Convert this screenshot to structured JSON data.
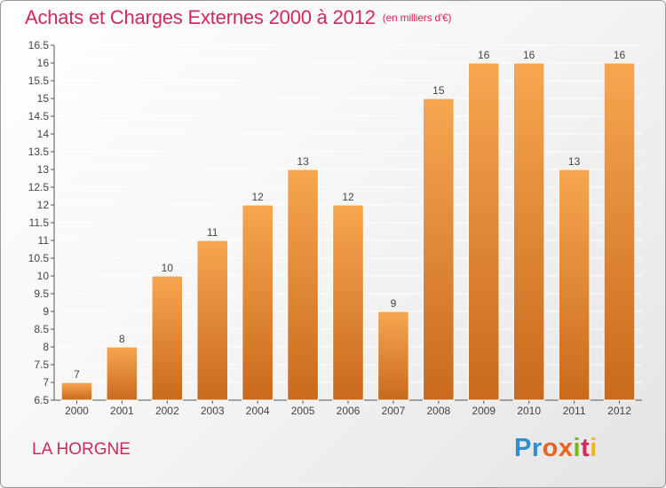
{
  "header": {
    "title": "Achats et Charges Externes 2000 à 2012",
    "unit": "(en milliers d'€)"
  },
  "footer": {
    "location": "LA HORGNE",
    "logo": [
      "P",
      "r",
      "o",
      "x",
      "i",
      "t",
      "i"
    ]
  },
  "colors": {
    "bar_light": "#f7a650",
    "bar_dark": "#c96a1c",
    "title": "#d02a5a",
    "grid": "#ffffff"
  },
  "chart_data": {
    "type": "bar",
    "title": "Achats et Charges Externes 2000 à 2012",
    "subtitle": "(en milliers d'€)",
    "categories": [
      "2000",
      "2001",
      "2002",
      "2003",
      "2004",
      "2005",
      "2006",
      "2007",
      "2008",
      "2009",
      "2010",
      "2011",
      "2012"
    ],
    "values": [
      7,
      8,
      10,
      11,
      12,
      13,
      12,
      9,
      15,
      16,
      16,
      13,
      16
    ],
    "ylim": [
      6.5,
      16.5
    ],
    "yticks": [
      "6.5",
      "7",
      "7.5",
      "8",
      "8.5",
      "9",
      "9.5",
      "10",
      "10.5",
      "11",
      "11.5",
      "12",
      "12.5",
      "13",
      "13.5",
      "14",
      "14.5",
      "15",
      "15.5",
      "16",
      "16.5"
    ],
    "xlabel": "",
    "ylabel": "",
    "grid": true,
    "data_labels": true,
    "legend": "none"
  }
}
